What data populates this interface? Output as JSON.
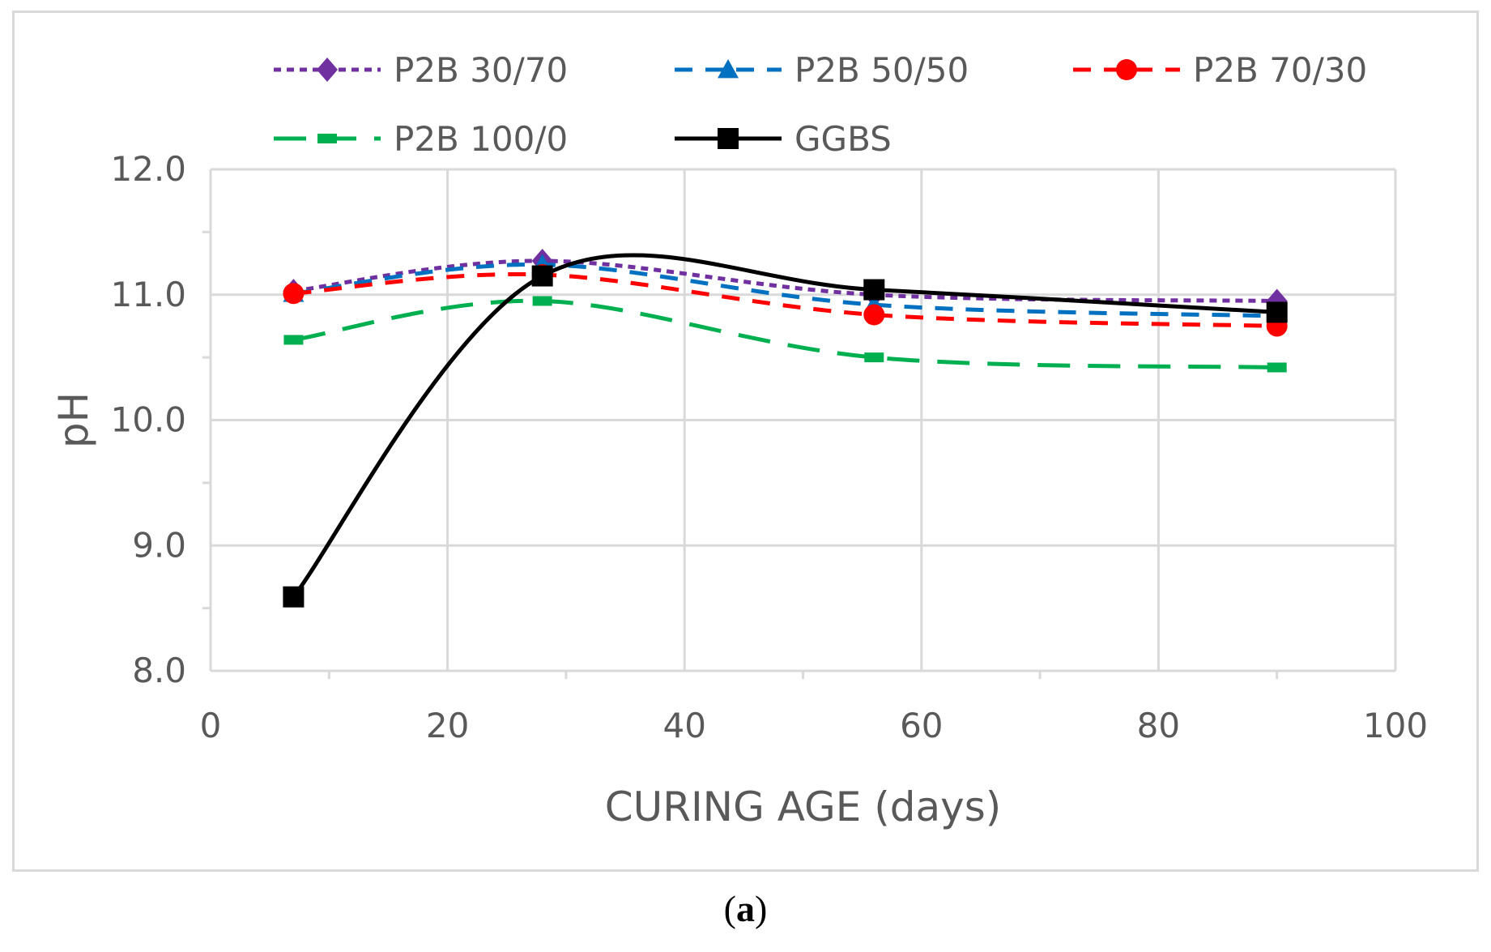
{
  "caption": {
    "open": "(",
    "letter": "a",
    "close": ")"
  },
  "chart_data": {
    "type": "line",
    "title": "",
    "xlabel": "CURING AGE (days)",
    "ylabel": "pH",
    "xlim": [
      0,
      100
    ],
    "ylim": [
      8.0,
      12.0
    ],
    "x_ticks": [
      0,
      20,
      40,
      60,
      80,
      100
    ],
    "x_tick_labels": [
      "0",
      "20",
      "40",
      "60",
      "80",
      "100"
    ],
    "y_ticks": [
      8.0,
      9.0,
      10.0,
      11.0,
      12.0
    ],
    "y_tick_labels": [
      "8.0",
      "9.0",
      "10.0",
      "11.0",
      "12.0"
    ],
    "grid": true,
    "legend_position": "top",
    "series": [
      {
        "name": "P2B 30/70",
        "color": "#7030a0",
        "marker": "diamond",
        "line_style": "dotted",
        "smooth": true,
        "x": [
          7,
          28,
          56,
          90
        ],
        "y": [
          11.03,
          11.27,
          11.0,
          10.95
        ]
      },
      {
        "name": "P2B 50/50",
        "color": "#0070c0",
        "marker": "triangle",
        "line_style": "dashed",
        "smooth": true,
        "x": [
          7,
          28,
          56,
          90
        ],
        "y": [
          11.01,
          11.24,
          10.92,
          10.83
        ]
      },
      {
        "name": "P2B 70/30",
        "color": "#ff0000",
        "marker": "circle",
        "line_style": "dashed",
        "smooth": true,
        "x": [
          7,
          28,
          56,
          90
        ],
        "y": [
          11.01,
          11.16,
          10.84,
          10.75
        ]
      },
      {
        "name": "P2B 100/0",
        "color": "#00b050",
        "marker": "dash",
        "line_style": "longdash",
        "smooth": true,
        "x": [
          7,
          28,
          56,
          90
        ],
        "y": [
          10.64,
          10.95,
          10.5,
          10.42
        ]
      },
      {
        "name": "GGBS",
        "color": "#000000",
        "marker": "square",
        "line_style": "solid",
        "smooth": true,
        "x": [
          7,
          28,
          56,
          90
        ],
        "y": [
          8.59,
          11.15,
          11.04,
          10.86
        ]
      }
    ]
  }
}
